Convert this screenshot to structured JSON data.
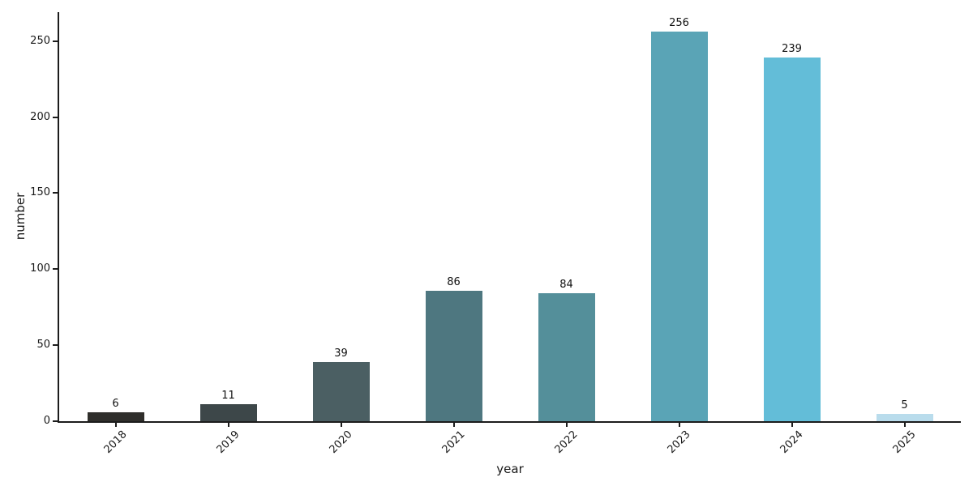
{
  "chart_data": {
    "type": "bar",
    "title": "",
    "xlabel": "year",
    "ylabel": "number",
    "categories": [
      "2018",
      "2019",
      "2020",
      "2021",
      "2022",
      "2023",
      "2024",
      "2025"
    ],
    "values": [
      6,
      11,
      39,
      86,
      84,
      256,
      239,
      5
    ],
    "bar_value_labels": [
      "6",
      "11",
      "39",
      "86",
      "84",
      "256",
      "239",
      "5"
    ],
    "bar_colors": [
      "#2f2e2b",
      "#3d4749",
      "#4b5f63",
      "#4e7780",
      "#548f9a",
      "#5aa4b6",
      "#63bdd8",
      "#b9dcec"
    ],
    "yticks": [
      0,
      50,
      100,
      150,
      200,
      250
    ],
    "ylim": [
      0,
      269
    ],
    "grid": false,
    "legend_position": "none",
    "background_color": "#ffffff",
    "axis_color": "#1c1c1c",
    "text_color": "#1a1a1a"
  }
}
